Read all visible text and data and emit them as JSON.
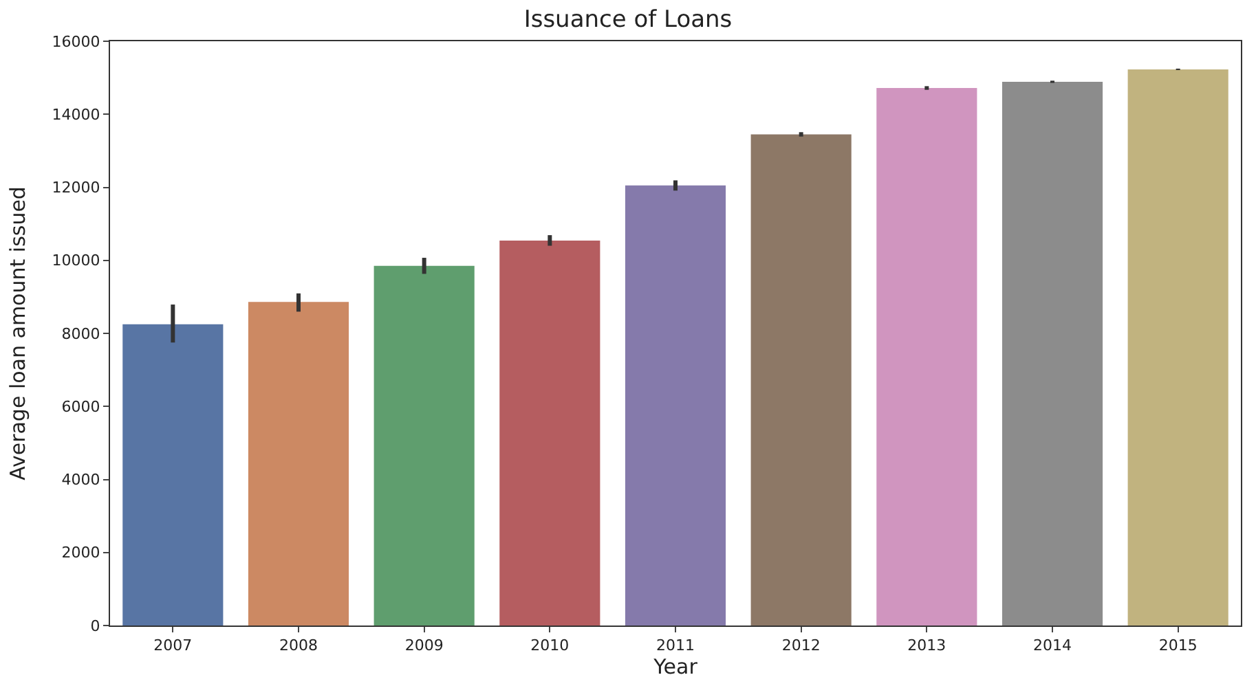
{
  "chart_data": {
    "type": "bar",
    "title": "Issuance of Loans",
    "xlabel": "Year",
    "ylabel": "Average loan amount issued",
    "categories": [
      "2007",
      "2008",
      "2009",
      "2010",
      "2011",
      "2012",
      "2013",
      "2014",
      "2015"
    ],
    "values": [
      8250,
      8860,
      9850,
      10540,
      12050,
      13450,
      14720,
      14890,
      15230
    ],
    "colors": [
      "#5875a4",
      "#cc8963",
      "#5f9e6e",
      "#b55d60",
      "#857aab",
      "#8d7866",
      "#d095bf",
      "#8c8c8c",
      "#c1b37f"
    ],
    "errors": [
      [
        7750,
        8790
      ],
      [
        8595,
        9095
      ],
      [
        9630,
        10070
      ],
      [
        10400,
        10690
      ],
      [
        11910,
        12190
      ],
      [
        13390,
        13510
      ],
      [
        14670,
        14770
      ],
      [
        14860,
        14920
      ],
      [
        15210,
        15250
      ]
    ],
    "ylim": [
      0,
      16000
    ],
    "yticks": [
      0,
      2000,
      4000,
      6000,
      8000,
      10000,
      12000,
      14000,
      16000
    ]
  }
}
